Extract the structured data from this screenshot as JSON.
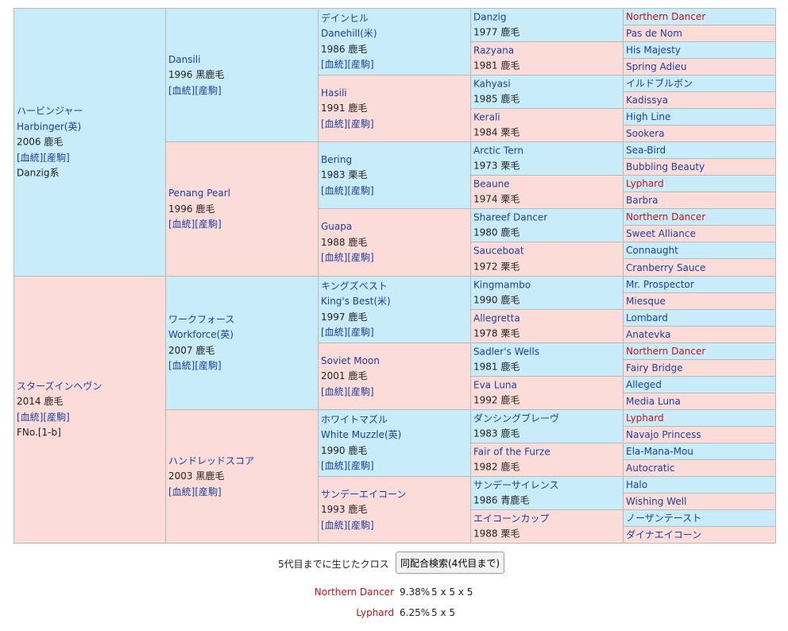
{
  "pedigree": {
    "g1": [
      {
        "type": "sire",
        "name": "ハービンジャー",
        "name_en": "Harbinger(英)",
        "info": "2006 鹿毛",
        "links": "[血統][産駒]",
        "note": "Danzig系"
      },
      {
        "type": "dam",
        "name": "スターズインヘヴン",
        "info": "2014 鹿毛",
        "links": "[血統][産駒]",
        "note": "FNo.[1-b]"
      }
    ],
    "g2": [
      {
        "type": "sire",
        "name": "Dansili",
        "info": "1996 黒鹿毛",
        "links": "[血統][産駒]"
      },
      {
        "type": "dam",
        "name": "Penang Pearl",
        "info": "1996 鹿毛",
        "links": "[血統][産駒]"
      },
      {
        "type": "sire",
        "name": "ワークフォース",
        "name_en": "Workforce(英)",
        "info": "2007 鹿毛",
        "links": "[血統][産駒]"
      },
      {
        "type": "dam",
        "name": "ハンドレッドスコア",
        "info": "2003 黒鹿毛",
        "links": "[血統][産駒]"
      }
    ],
    "g3": [
      {
        "type": "sire",
        "name": "デインヒル",
        "name_en": "Danehill(米)",
        "info": "1986 鹿毛",
        "links": "[血統][産駒]"
      },
      {
        "type": "dam",
        "name": "Hasili",
        "info": "1991 鹿毛",
        "links": "[血統][産駒]"
      },
      {
        "type": "sire",
        "name": "Bering",
        "info": "1983 栗毛",
        "links": "[血統][産駒]"
      },
      {
        "type": "dam",
        "name": "Guapa",
        "info": "1988 鹿毛",
        "links": "[血統][産駒]"
      },
      {
        "type": "sire",
        "name": "キングズベスト",
        "name_en": "King's Best(米)",
        "info": "1997 鹿毛",
        "links": "[血統][産駒]"
      },
      {
        "type": "dam",
        "name": "Soviet Moon",
        "info": "2001 鹿毛",
        "links": "[血統][産駒]"
      },
      {
        "type": "sire",
        "name": "ホワイトマズル",
        "name_en": "White Muzzle(英)",
        "info": "1990 鹿毛",
        "links": "[血統][産駒]"
      },
      {
        "type": "dam",
        "name": "サンデーエイコーン",
        "info": "1993 鹿毛",
        "links": "[血統][産駒]"
      }
    ],
    "g4": [
      {
        "type": "sire",
        "name": "Danzig",
        "info": "1977 鹿毛"
      },
      {
        "type": "dam",
        "name": "Razyana",
        "info": "1981 鹿毛"
      },
      {
        "type": "sire",
        "name": "Kahyasi",
        "info": "1985 鹿毛"
      },
      {
        "type": "dam",
        "name": "Kerali",
        "info": "1984 栗毛"
      },
      {
        "type": "sire",
        "name": "Arctic Tern",
        "info": "1973 栗毛"
      },
      {
        "type": "dam",
        "name": "Beaune",
        "info": "1974 栗毛"
      },
      {
        "type": "sire",
        "name": "Shareef Dancer",
        "info": "1980 鹿毛"
      },
      {
        "type": "dam",
        "name": "Sauceboat",
        "info": "1972 栗毛"
      },
      {
        "type": "sire",
        "name": "Kingmambo",
        "info": "1990 鹿毛"
      },
      {
        "type": "dam",
        "name": "Allegretta",
        "info": "1978 栗毛"
      },
      {
        "type": "sire",
        "name": "Sadler's Wells",
        "info": "1981 鹿毛"
      },
      {
        "type": "dam",
        "name": "Eva Luna",
        "info": "1992 鹿毛"
      },
      {
        "type": "sire",
        "name": "ダンシングブレーヴ",
        "info": "1983 鹿毛"
      },
      {
        "type": "dam",
        "name": "Fair of the Furze",
        "info": "1982 鹿毛"
      },
      {
        "type": "sire",
        "name": "サンデーサイレンス",
        "info": "1986 青鹿毛"
      },
      {
        "type": "dam",
        "name": "エイコーンカップ",
        "info": "1988 栗毛"
      }
    ],
    "g5": [
      {
        "type": "sire",
        "name": "Northern Dancer",
        "cross": true
      },
      {
        "type": "dam",
        "name": "Pas de Nom"
      },
      {
        "type": "sire",
        "name": "His Majesty"
      },
      {
        "type": "dam",
        "name": "Spring Adieu"
      },
      {
        "type": "sire",
        "name": "イルドブルボン"
      },
      {
        "type": "dam",
        "name": "Kadissya"
      },
      {
        "type": "sire",
        "name": "High Line"
      },
      {
        "type": "dam",
        "name": "Sookera"
      },
      {
        "type": "sire",
        "name": "Sea-Bird"
      },
      {
        "type": "dam",
        "name": "Bubbling Beauty"
      },
      {
        "type": "sire",
        "name": "Lyphard",
        "cross": true
      },
      {
        "type": "dam",
        "name": "Barbra"
      },
      {
        "type": "sire",
        "name": "Northern Dancer",
        "cross": true
      },
      {
        "type": "dam",
        "name": "Sweet Alliance"
      },
      {
        "type": "sire",
        "name": "Connaught"
      },
      {
        "type": "dam",
        "name": "Cranberry Sauce"
      },
      {
        "type": "sire",
        "name": "Mr. Prospector"
      },
      {
        "type": "dam",
        "name": "Miesque"
      },
      {
        "type": "sire",
        "name": "Lombard"
      },
      {
        "type": "dam",
        "name": "Anatevka"
      },
      {
        "type": "sire",
        "name": "Northern Dancer",
        "cross": true
      },
      {
        "type": "dam",
        "name": "Fairy Bridge"
      },
      {
        "type": "sire",
        "name": "Alleged"
      },
      {
        "type": "dam",
        "name": "Media Luna"
      },
      {
        "type": "sire",
        "name": "Lyphard",
        "cross": true
      },
      {
        "type": "dam",
        "name": "Navajo Princess"
      },
      {
        "type": "sire",
        "name": "Ela-Mana-Mou"
      },
      {
        "type": "dam",
        "name": "Autocratic"
      },
      {
        "type": "sire",
        "name": "Halo"
      },
      {
        "type": "dam",
        "name": "Wishing Well"
      },
      {
        "type": "sire",
        "name": "ノーザンテースト"
      },
      {
        "type": "dam",
        "name": "ダイナエイコーン"
      }
    ]
  },
  "cross": {
    "caption": "5代目までに生じたクロス",
    "button_label": "同配合検索(4代目まで)",
    "rows": [
      {
        "name": "Northern Dancer",
        "percent": "9.38%",
        "generations": "5 x 5 x 5"
      },
      {
        "name": "Lyphard",
        "percent": "6.25%",
        "generations": "5 x 5"
      }
    ]
  },
  "colors": {
    "sire_bg": "#c9ecfb",
    "dam_bg": "#fcdcd8",
    "link": "#1a3fa3",
    "cross_link": "#cc1111",
    "border": "#b8b8b8"
  }
}
